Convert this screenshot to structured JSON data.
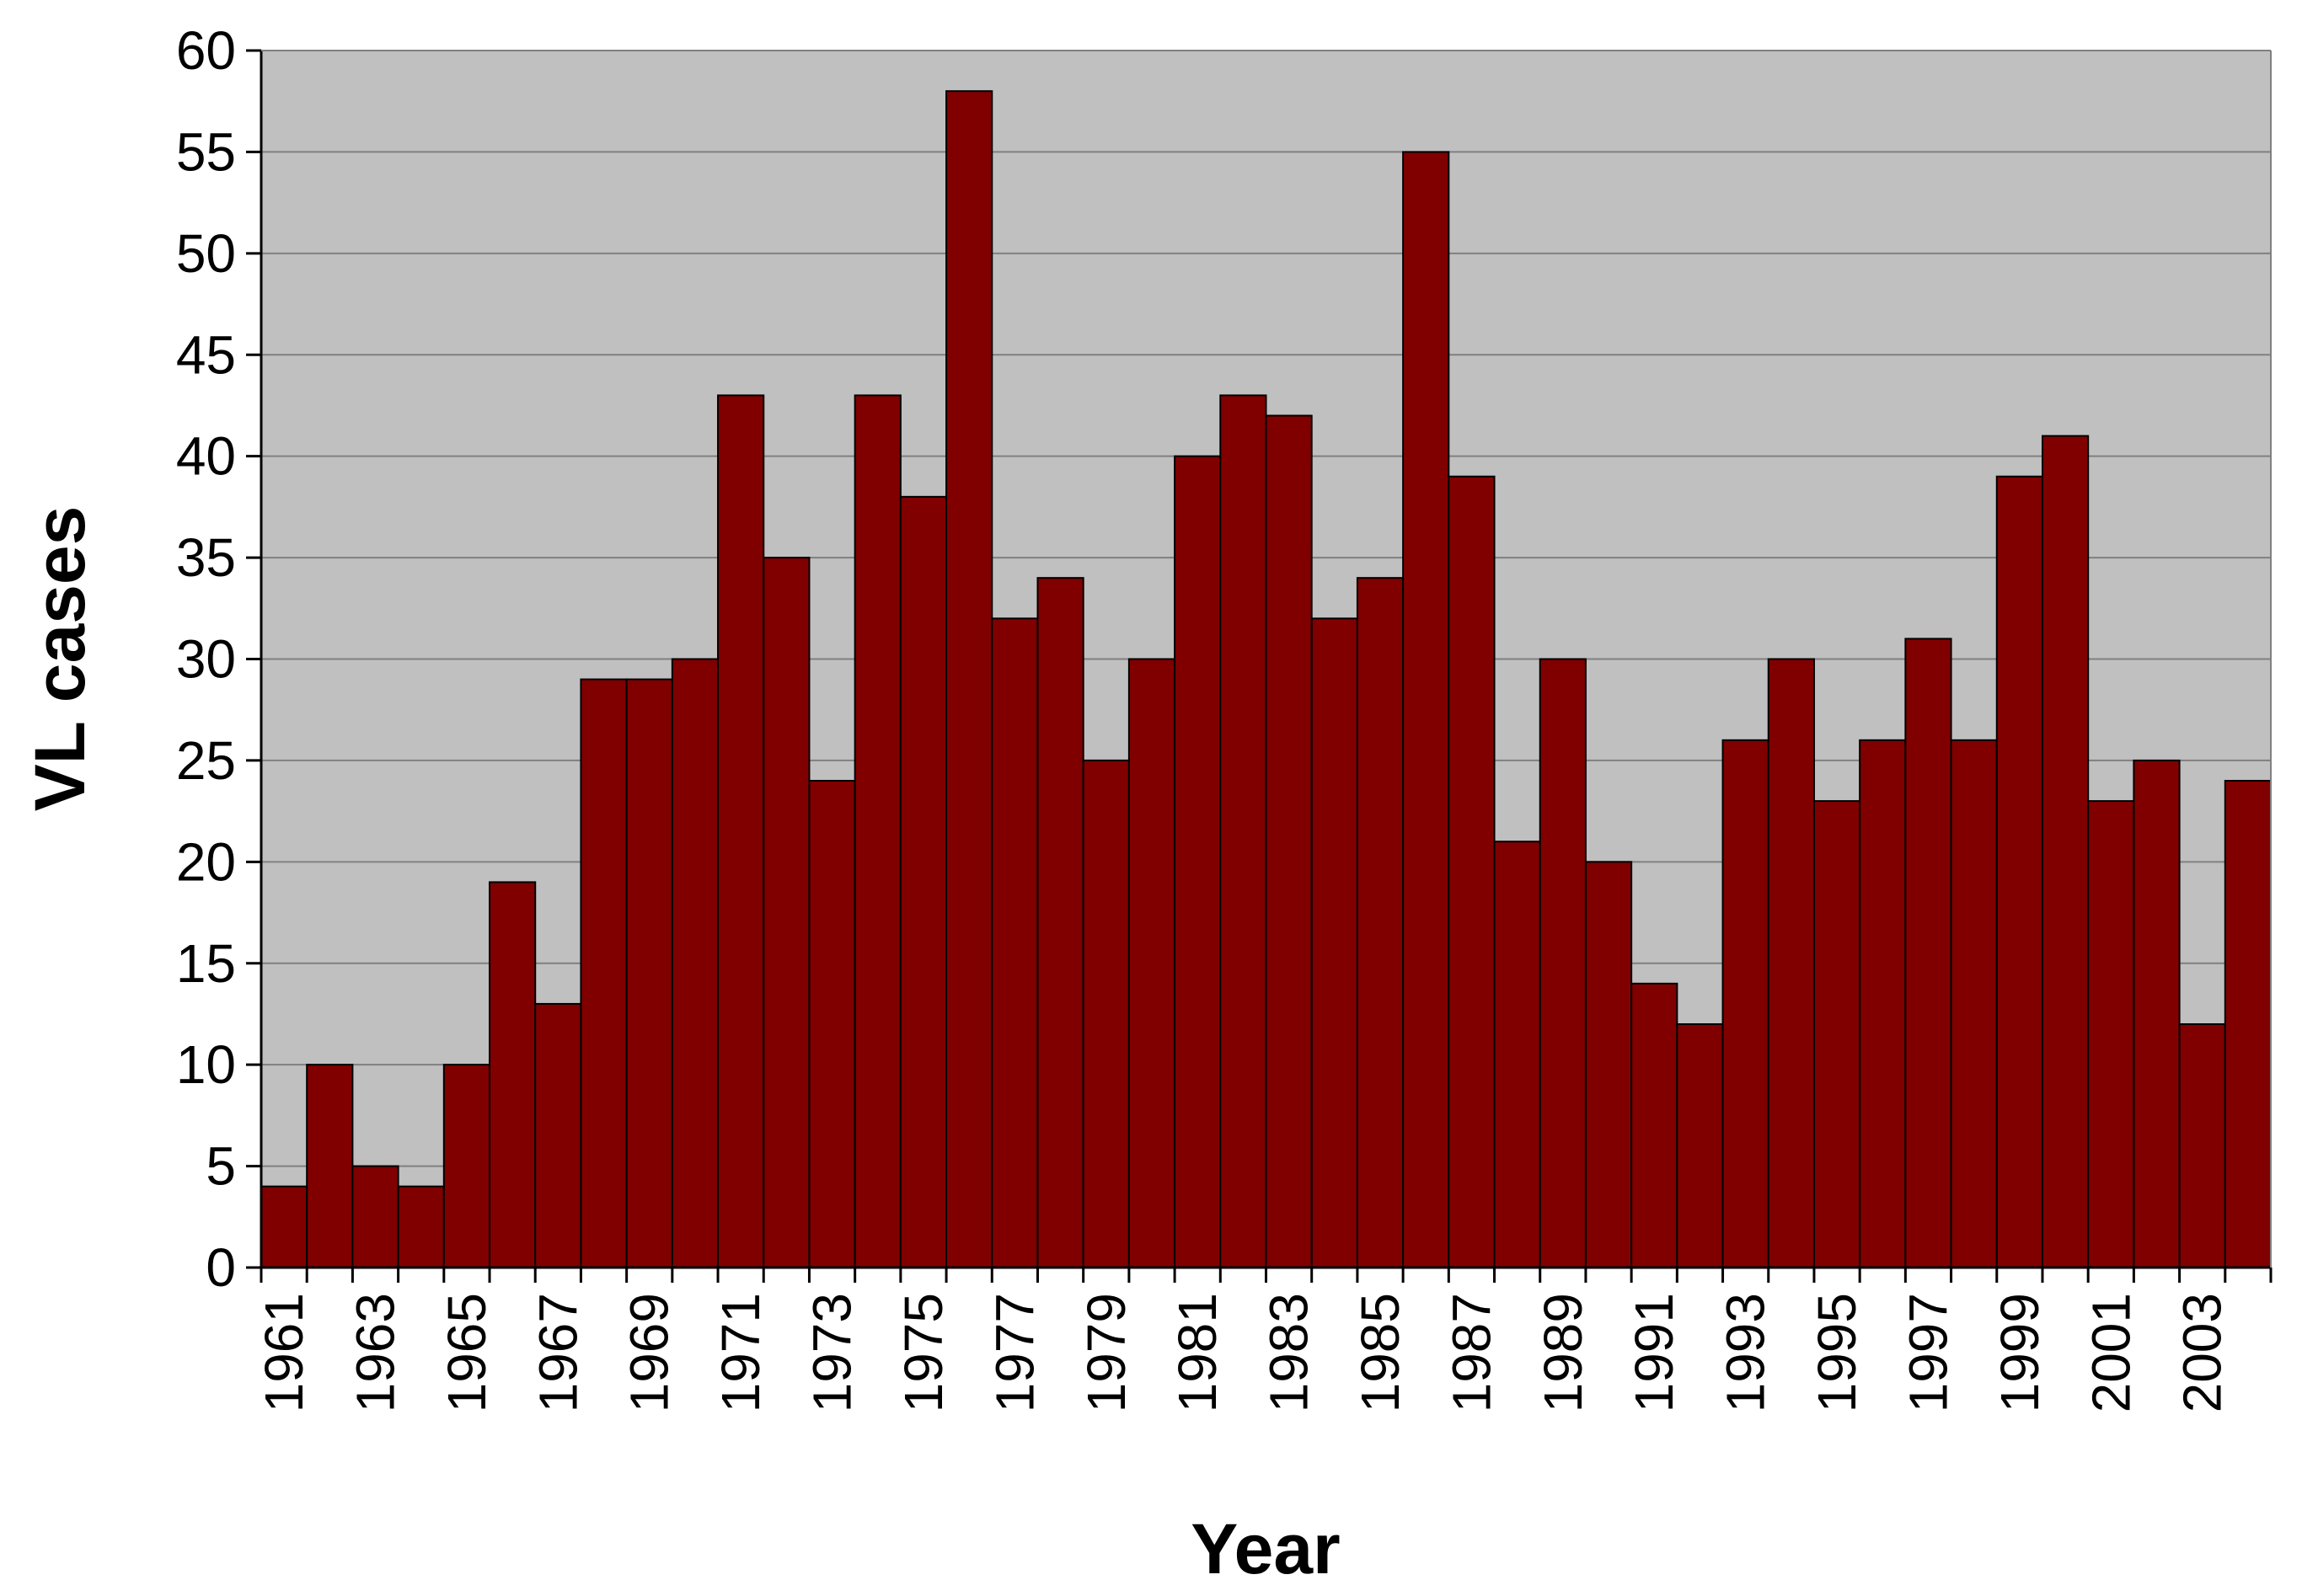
{
  "chart_data": {
    "type": "bar",
    "title": "",
    "xlabel": "Year",
    "ylabel": "VL cases",
    "ylim": [
      0,
      60
    ],
    "yticks": [
      0,
      5,
      10,
      15,
      20,
      25,
      30,
      35,
      40,
      45,
      50,
      55,
      60
    ],
    "grid": true,
    "legend": "none",
    "categories": [
      "1961",
      "1962",
      "1963",
      "1964",
      "1965",
      "1966",
      "1967",
      "1968",
      "1969",
      "1970",
      "1971",
      "1972",
      "1973",
      "1974",
      "1975",
      "1976",
      "1977",
      "1978",
      "1979",
      "1980",
      "1981",
      "1982",
      "1983",
      "1984",
      "1985",
      "1986",
      "1987",
      "1988",
      "1989",
      "1990",
      "1991",
      "1992",
      "1993",
      "1994",
      "1995",
      "1996",
      "1997",
      "1998",
      "1999",
      "2000",
      "2001",
      "2002",
      "2003",
      "2004"
    ],
    "x_tick_labels": [
      "1961",
      "1963",
      "1965",
      "1967",
      "1969",
      "1971",
      "1973",
      "1975",
      "1977",
      "1979",
      "1981",
      "1983",
      "1985",
      "1987",
      "1989",
      "1991",
      "1993",
      "1995",
      "1997",
      "1999",
      "2001",
      "2003"
    ],
    "values": [
      4,
      10,
      5,
      4,
      10,
      19,
      13,
      29,
      29,
      30,
      43,
      35,
      24,
      43,
      38,
      58,
      32,
      34,
      25,
      30,
      40,
      43,
      42,
      32,
      34,
      55,
      39,
      21,
      30,
      20,
      14,
      12,
      26,
      30,
      23,
      26,
      31,
      26,
      39,
      41,
      23,
      25,
      12,
      24
    ],
    "colors": {
      "bar": "#800000",
      "plot_background": "#c0c0c0",
      "gridline": "#808080",
      "axis": "#000000"
    }
  }
}
